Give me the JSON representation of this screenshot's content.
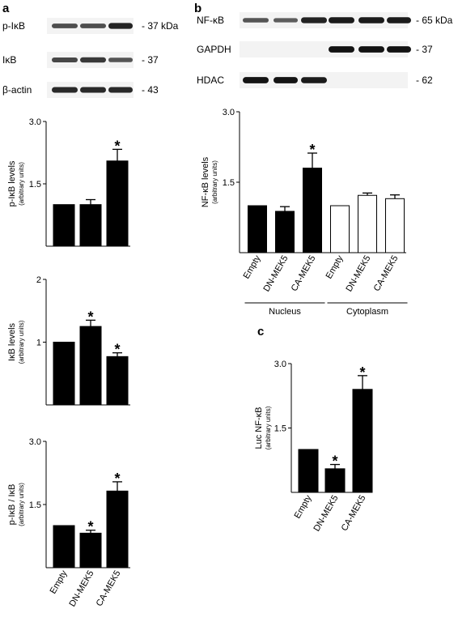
{
  "panels": {
    "a": "a",
    "b": "b",
    "c": "c"
  },
  "blots": {
    "a": [
      {
        "label": "p-IκB",
        "size": "- 37 kDa",
        "intensities": [
          0.55,
          0.55,
          0.85
        ]
      },
      {
        "label": "IκB",
        "size": "- 37",
        "intensities": [
          0.6,
          0.7,
          0.5
        ]
      },
      {
        "label": "β-actin",
        "size": "- 43",
        "intensities": [
          0.8,
          0.8,
          0.8
        ]
      }
    ],
    "b": [
      {
        "label": "NF-κB",
        "size": "- 65 kDa",
        "intensities": [
          0.5,
          0.45,
          0.85,
          0.9,
          0.9,
          0.9
        ]
      },
      {
        "label": "GAPDH",
        "size": "- 37",
        "intensities": [
          0,
          0,
          0,
          0.95,
          0.95,
          0.95
        ]
      },
      {
        "label": "HDAC",
        "size": "- 62",
        "intensities": [
          0.95,
          0.95,
          0.9,
          0,
          0,
          0
        ]
      }
    ]
  },
  "chart_data": [
    {
      "id": "a1",
      "type": "bar",
      "categories": [
        "Empty",
        "DN-MEK5",
        "CA-MEK5"
      ],
      "values": [
        1.0,
        1.0,
        2.05
      ],
      "errors": [
        0,
        0.12,
        0.28
      ],
      "significant": [
        false,
        false,
        true
      ],
      "ylim": [
        0,
        3.0
      ],
      "yticks": [
        "1.5",
        "3.0"
      ],
      "ylabel": "p-IκB levels",
      "ylabel_sub": "(arbitrary units)",
      "fill": "#000000"
    },
    {
      "id": "a2",
      "type": "bar",
      "categories": [
        "Empty",
        "DN-MEK5",
        "CA-MEK5"
      ],
      "values": [
        1.0,
        1.25,
        0.77
      ],
      "errors": [
        0,
        0.1,
        0.06
      ],
      "significant": [
        false,
        true,
        true
      ],
      "ylim": [
        0,
        2
      ],
      "yticks": [
        "1",
        "2"
      ],
      "ylabel": "IκB levels",
      "ylabel_sub": "(arbitrary units)",
      "fill": "#000000"
    },
    {
      "id": "a3",
      "type": "bar",
      "categories": [
        "Empty",
        "DN-MEK5",
        "CA-MEK5"
      ],
      "values": [
        1.0,
        0.82,
        1.82
      ],
      "errors": [
        0,
        0.07,
        0.22
      ],
      "significant": [
        false,
        true,
        true
      ],
      "ylim": [
        0,
        3.0
      ],
      "yticks": [
        "1.5",
        "3.0"
      ],
      "ylabel": "p-IκB / IκB",
      "ylabel_sub": "(arbitrary units)",
      "fill": "#000000"
    },
    {
      "id": "b1",
      "type": "bar",
      "categories": [
        "Empty",
        "DN-MEK5",
        "CA-MEK5",
        "Empty",
        "DN-MEK5",
        "CA-MEK5"
      ],
      "values": [
        1.0,
        0.88,
        1.8,
        1.0,
        1.22,
        1.15
      ],
      "errors": [
        0,
        0.1,
        0.32,
        0,
        0.05,
        0.08
      ],
      "significant": [
        false,
        false,
        true,
        false,
        false,
        false
      ],
      "fills": [
        "#000000",
        "#000000",
        "#000000",
        "#ffffff",
        "#ffffff",
        "#ffffff"
      ],
      "groups": [
        {
          "label": "Nucleus",
          "from": 0,
          "to": 2
        },
        {
          "label": "Cytoplasm",
          "from": 3,
          "to": 5
        }
      ],
      "ylim": [
        0,
        3.0
      ],
      "yticks": [
        "1.5",
        "3.0"
      ],
      "ylabel": "NF-κB levels",
      "ylabel_sub": "(arbitrary units)"
    },
    {
      "id": "c1",
      "type": "bar",
      "categories": [
        "Empty",
        "DN-MEK5",
        "CA-MEK5"
      ],
      "values": [
        1.0,
        0.55,
        2.4
      ],
      "errors": [
        0,
        0.1,
        0.32
      ],
      "significant": [
        false,
        true,
        true
      ],
      "ylim": [
        0,
        3.0
      ],
      "yticks": [
        "1.5",
        "3.0"
      ],
      "ylabel": "Luc NF-κB",
      "ylabel_sub": "(arbitrary units)",
      "fill": "#000000"
    }
  ]
}
